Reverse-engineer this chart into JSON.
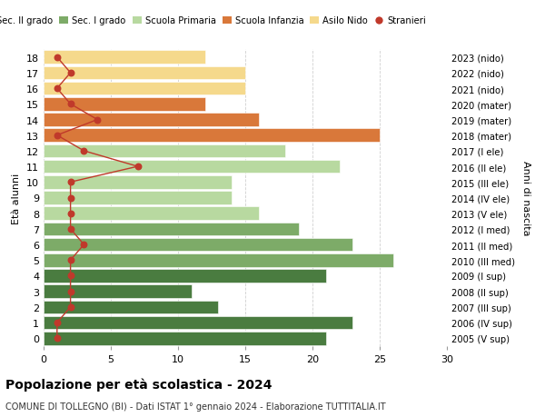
{
  "ages": [
    18,
    17,
    16,
    15,
    14,
    13,
    12,
    11,
    10,
    9,
    8,
    7,
    6,
    5,
    4,
    3,
    2,
    1,
    0
  ],
  "right_labels": [
    "2005 (V sup)",
    "2006 (IV sup)",
    "2007 (III sup)",
    "2008 (II sup)",
    "2009 (I sup)",
    "2010 (III med)",
    "2011 (II med)",
    "2012 (I med)",
    "2013 (V ele)",
    "2014 (IV ele)",
    "2015 (III ele)",
    "2016 (II ele)",
    "2017 (I ele)",
    "2018 (mater)",
    "2019 (mater)",
    "2020 (mater)",
    "2021 (nido)",
    "2022 (nido)",
    "2023 (nido)"
  ],
  "bar_values": [
    21,
    23,
    13,
    11,
    21,
    26,
    23,
    19,
    16,
    14,
    14,
    22,
    18,
    25,
    16,
    12,
    15,
    15,
    12
  ],
  "bar_colors": [
    "#4a7c40",
    "#4a7c40",
    "#4a7c40",
    "#4a7c40",
    "#4a7c40",
    "#7dab68",
    "#7dab68",
    "#7dab68",
    "#b8d9a0",
    "#b8d9a0",
    "#b8d9a0",
    "#b8d9a0",
    "#b8d9a0",
    "#d9783a",
    "#d9783a",
    "#d9783a",
    "#f5d98c",
    "#f5d98c",
    "#f5d98c"
  ],
  "stranieri_values": [
    1,
    1,
    2,
    2,
    2,
    2,
    3,
    2,
    2,
    2,
    2,
    7,
    3,
    1,
    4,
    2,
    1,
    2,
    1
  ],
  "legend_labels": [
    "Sec. II grado",
    "Sec. I grado",
    "Scuola Primaria",
    "Scuola Infanzia",
    "Asilo Nido",
    "Stranieri"
  ],
  "legend_colors": [
    "#4a7c40",
    "#7dab68",
    "#b8d9a0",
    "#d9783a",
    "#f5d98c",
    "#c0392b"
  ],
  "title": "Popolazione per età scolastica - 2024",
  "subtitle": "COMUNE DI TOLLEGNO (BI) - Dati ISTAT 1° gennaio 2024 - Elaborazione TUTTITALIA.IT",
  "ylabel_left": "Età alunni",
  "ylabel_right": "Anni di nascita",
  "xlim": [
    0,
    30
  ],
  "stranieri_color": "#c0392b",
  "background_color": "#ffffff",
  "grid_color": "#d0d0d0"
}
